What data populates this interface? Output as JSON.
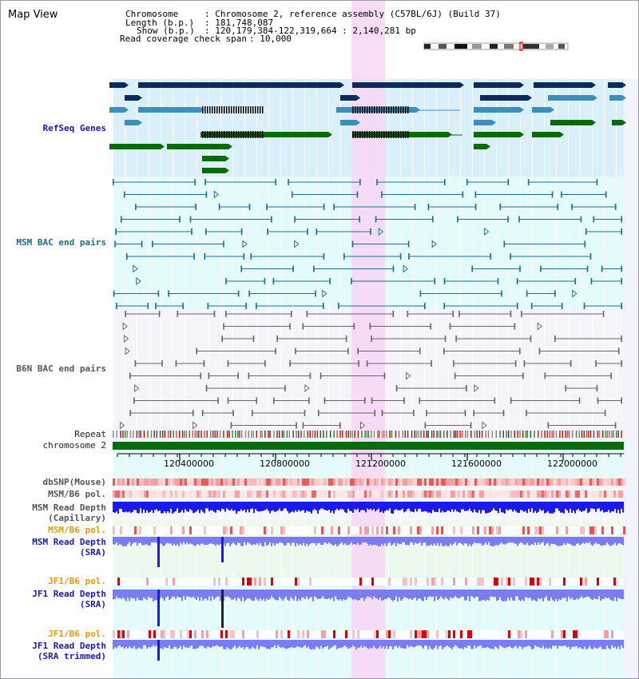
{
  "view": {
    "title": "Map View"
  },
  "header": {
    "k_chromosome": "Chromosome",
    "v_chromosome": ": Chromosome 2, reference assembly (C57BL/6J) (Build 37)",
    "k_length": "Length (b.p.)",
    "v_length": ": 181,748,087",
    "k_show": "Show (b.p.)",
    "v_show": ": 120,179,384-122,319,664 : 2,140,281 bp",
    "k_span": "Read coverage check span",
    "v_span": ": 10,000"
  },
  "tracks": {
    "refseq": "RefSeq Genes",
    "msm_bac": "MSM BAC end pairs",
    "b6n_bac": "B6N BAC end pairs",
    "repeat": "Repeat",
    "chromosome": "chromosome 2",
    "dbsnp": "dbSNP(Mouse)",
    "msm_b6_pol_1": "MSM/B6 pol.",
    "msm_depth_cap": "MSM Read Depth\n(Capillary)",
    "msm_b6_pol_2": "MSM/B6 pol.",
    "msm_depth_sra": "MSM Read Depth\n(SRA)",
    "jf1_b6_pol_1": "JF1/B6 pol.",
    "jf1_depth_sra": "JF1 Read Depth\n(SRA)",
    "jf1_b6_pol_2": "JF1/B6 pol.",
    "jf1_depth_trim": "JF1 Read Depth\n(SRA trimmed)"
  },
  "axis": {
    "ticks": [
      "120400000",
      "120800000",
      "121200000",
      "121600000",
      "122000000"
    ]
  },
  "colors": {
    "refseq_dark": "#0d2a5e",
    "refseq_mid": "#3d8fbb",
    "refseq_green": "#0a6a0a",
    "bac_msm": "#1f6b88",
    "bac_b6n": "#666666",
    "highlight": "#f7d6f5",
    "depth_dark": "#1a1aee",
    "depth_light": "#7b7bf2"
  }
}
